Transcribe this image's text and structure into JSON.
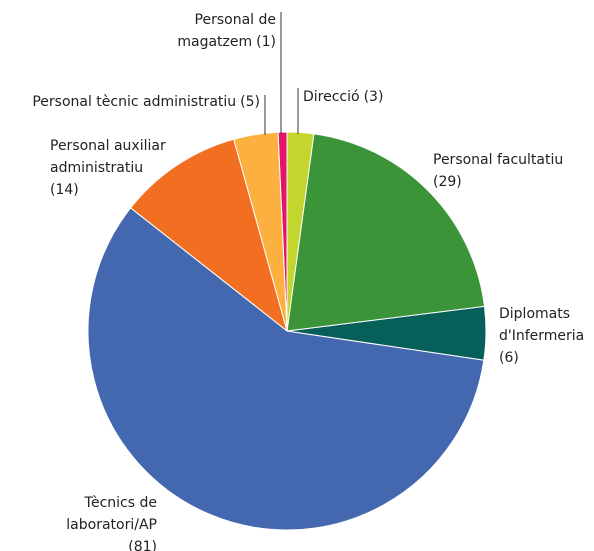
{
  "chart_data": {
    "type": "pie",
    "categories": [
      "Direcció",
      "Personal facultatiu",
      "Diplomats d'Infermeria",
      "Tècnics de laboratori/AP",
      "Personal auxiliar administratiu",
      "Personal tècnic administratiu",
      "Personal de magatzem"
    ],
    "values": [
      3,
      29,
      6,
      81,
      14,
      5,
      1
    ],
    "value_labels": [
      "(3)",
      "(29)",
      "(6)",
      "(81)",
      "(14)",
      "(5)",
      "(1)"
    ],
    "colors": [
      "#c2d62e",
      "#3b9538",
      "#075f5a",
      "#4468b0",
      "#f26f22",
      "#fbb040",
      "#e2156b"
    ]
  }
}
